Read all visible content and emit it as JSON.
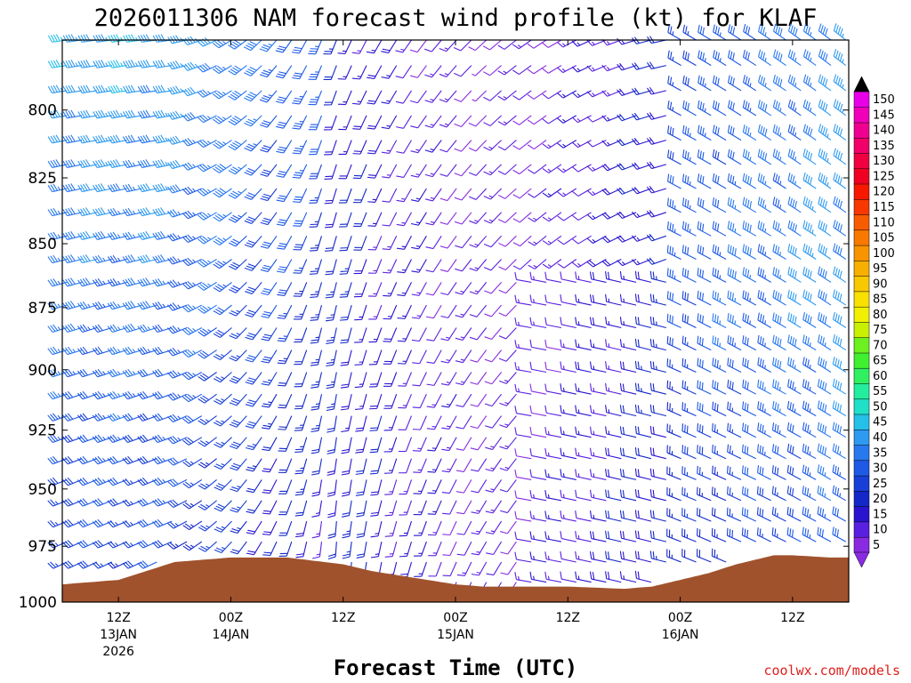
{
  "title": "2026011306 NAM forecast wind profile (kt) for KLAF",
  "xlabel": "Forecast Time (UTC)",
  "credit": "coolwx.com/models",
  "terrain_color": "#a0522d",
  "chart_data": {
    "type": "wind-barb-time-height",
    "title": "2026011306 NAM forecast wind profile (kt) for KLAF",
    "xlabel": "Forecast Time (UTC)",
    "ylabel": "",
    "units": "kt",
    "y_axis": {
      "scale": "pressure",
      "range": [
        1000,
        775
      ],
      "ticks": [
        800,
        825,
        850,
        875,
        900,
        925,
        950,
        975,
        1000
      ]
    },
    "x_axis": {
      "range_hours": [
        0,
        84
      ],
      "ticks": [
        {
          "hour": 6,
          "label": "12Z",
          "sub1": "13JAN",
          "sub2": "2026"
        },
        {
          "hour": 18,
          "label": "00Z",
          "sub1": "14JAN",
          "sub2": ""
        },
        {
          "hour": 30,
          "label": "12Z",
          "sub1": "",
          "sub2": ""
        },
        {
          "hour": 42,
          "label": "00Z",
          "sub1": "15JAN",
          "sub2": ""
        },
        {
          "hour": 54,
          "label": "12Z",
          "sub1": "",
          "sub2": ""
        },
        {
          "hour": 66,
          "label": "00Z",
          "sub1": "16JAN",
          "sub2": ""
        },
        {
          "hour": 78,
          "label": "12Z",
          "sub1": "",
          "sub2": ""
        }
      ]
    },
    "surface_pressure_hpa": {
      "hours": [
        0,
        6,
        9,
        12,
        18,
        24,
        30,
        33,
        36,
        39,
        42,
        45,
        48,
        54,
        60,
        63,
        66,
        69,
        72,
        76,
        78,
        82,
        84
      ],
      "pressure": [
        992,
        990,
        986,
        982,
        980,
        980,
        983,
        986,
        988,
        990,
        992,
        993,
        993,
        993,
        994,
        993,
        990,
        987,
        983,
        979,
        979,
        980,
        980
      ]
    },
    "colorbar": {
      "values": [
        5,
        10,
        15,
        20,
        25,
        30,
        35,
        40,
        45,
        50,
        55,
        60,
        65,
        70,
        75,
        80,
        85,
        90,
        95,
        100,
        105,
        110,
        115,
        120,
        125,
        130,
        135,
        140,
        145,
        150
      ],
      "colors": [
        "#8a2be2",
        "#5a20e0",
        "#2a14d0",
        "#1428c8",
        "#1840d8",
        "#1e5ae6",
        "#2878ee",
        "#2e9af0",
        "#24c0e8",
        "#20e0c8",
        "#22ee9e",
        "#30f060",
        "#40f030",
        "#6cf020",
        "#c8f000",
        "#f0f000",
        "#f8e000",
        "#f8c800",
        "#f8b000",
        "#f89400",
        "#f87800",
        "#f85c00",
        "#f83800",
        "#f81800",
        "#f00020",
        "#f00040",
        "#f00068",
        "#f00090",
        "#f000b8",
        "#e800e8"
      ]
    },
    "wind_profile_summary": {
      "early_period": "westerly winds 30-50 kt aloft",
      "middle_period": "winds veering to southerly, 10-25 kt",
      "late_period": "northwesterly winds 30-45 kt"
    }
  }
}
